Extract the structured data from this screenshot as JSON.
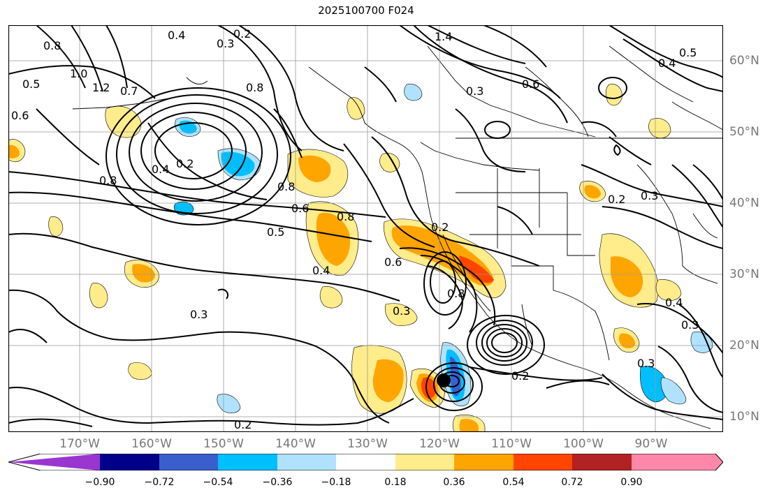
{
  "title": "2025100700 F024",
  "lon_labels": [
    "170°W",
    "160°W",
    "150°W",
    "140°W",
    "130°W",
    "120°W",
    "110°W",
    "100°W",
    "90°W"
  ],
  "lat_labels": [
    "60°N",
    "50°N",
    "40°N",
    "30°N",
    "20°N",
    "10°N"
  ],
  "colorbar": {
    "ticks": [
      "−0.90",
      "−0.72",
      "−0.54",
      "−0.36",
      "−0.18",
      "0.18",
      "0.36",
      "0.54",
      "0.72",
      "0.90"
    ],
    "colors": [
      "#9a36cf",
      "#00008b",
      "#3a5fcd",
      "#00bfff",
      "#b0e2ff",
      "#ffffff",
      "#ffec8b",
      "#ffa500",
      "#ff4500",
      "#b22222",
      "#ff88aa"
    ]
  },
  "contour_labels": [
    "0.2",
    "0.8",
    "0.5",
    "0.6",
    "0.3",
    "0.4",
    "1.0",
    "1.2",
    "0.7",
    "1.4",
    "0.8",
    "0.2",
    "0.4",
    "0.8",
    "0.6",
    "0.5",
    "0.8",
    "0.6",
    "0.4",
    "0.3",
    "0.2",
    "0.8",
    "0.3",
    "0.2",
    "0.2",
    "0.3",
    "0.4",
    "0.3",
    "0.3",
    "0.5",
    "0.4",
    "0.3",
    "0.6",
    "0.2",
    "0.8"
  ],
  "colors": {
    "contour": "#000000",
    "gridline": "#999999",
    "marker": "#000000"
  }
}
